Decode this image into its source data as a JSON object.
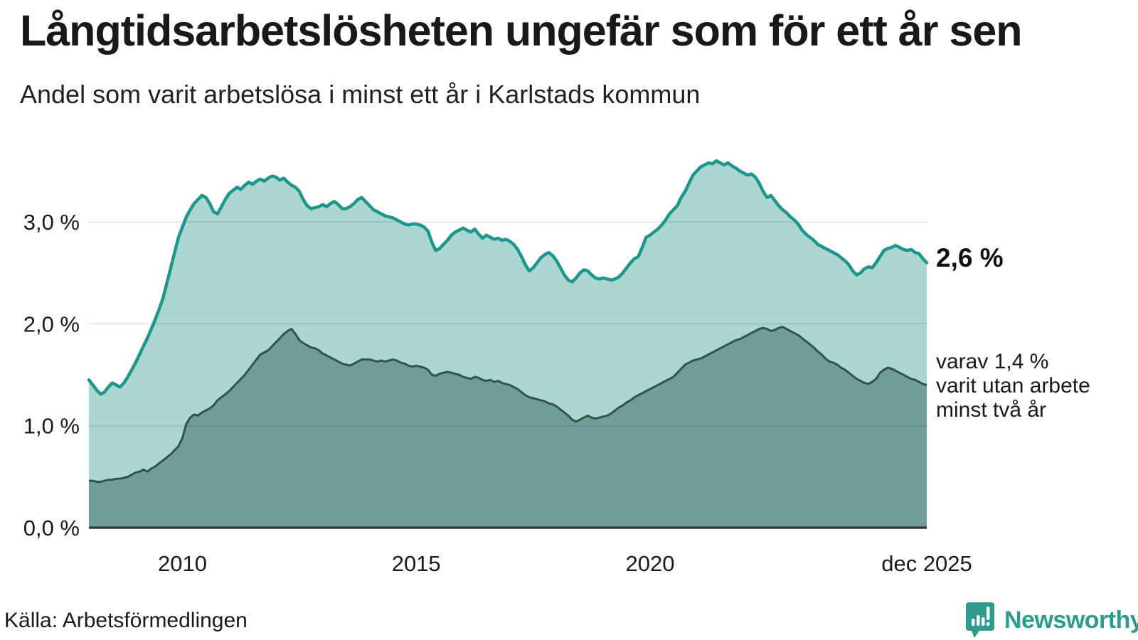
{
  "header": {
    "title": "Långtidsarbetslösheten ungefär som för ett år sen",
    "subtitle": "Andel som varit arbetslösa i minst ett år i Karlstads kommun"
  },
  "annotations": {
    "total_end_label": "2,6 %",
    "dark_end_line1": "varav 1,4 %",
    "dark_end_line2": "varit utan arbete",
    "dark_end_line3": "minst två år"
  },
  "footer": {
    "source": "Källa: Arbetsförmedlingen",
    "brand": "Newsworthy",
    "brand_color": "#2b9b8e",
    "logo_icon": "speech-bubble-bar-chart-icon"
  },
  "chart_data": {
    "type": "area",
    "title": "Långtidsarbetslösheten ungefär som för ett år sen",
    "subtitle": "Andel som varit arbetslösa i minst ett år i Karlstads kommun",
    "x_start": "2008-01",
    "x_end": "2025-12",
    "x_ticks": [
      {
        "index": 24,
        "label": "2010"
      },
      {
        "index": 84,
        "label": "2015"
      },
      {
        "index": 144,
        "label": "2020"
      },
      {
        "index": 215,
        "label": "dec 2025"
      }
    ],
    "y_ticks": [
      {
        "value": 0,
        "label": "0,0 %"
      },
      {
        "value": 1,
        "label": "1,0 %"
      },
      {
        "value": 2,
        "label": "2,0 %"
      },
      {
        "value": 3,
        "label": "3,0 %"
      }
    ],
    "ylim": [
      0,
      3.75
    ],
    "grid": true,
    "legend_position": "right-annotations",
    "colors": {
      "total_line": "#1d968b",
      "total_fill": "#abd7d0",
      "dark_line": "#35514c",
      "dark_fill": "#709d96",
      "gridline": "rgba(0,0,0,0.09)",
      "baseline": "#3a3a3a",
      "text": "#1a1a1a"
    },
    "series": [
      {
        "name": "arbetslösa minst ett år",
        "end_value": 2.6,
        "values": [
          1.45,
          1.4,
          1.35,
          1.31,
          1.33,
          1.38,
          1.42,
          1.4,
          1.38,
          1.42,
          1.48,
          1.55,
          1.62,
          1.7,
          1.78,
          1.86,
          1.95,
          2.04,
          2.14,
          2.25,
          2.4,
          2.55,
          2.7,
          2.85,
          2.95,
          3.05,
          3.12,
          3.18,
          3.22,
          3.26,
          3.24,
          3.18,
          3.1,
          3.08,
          3.15,
          3.22,
          3.28,
          3.31,
          3.34,
          3.32,
          3.36,
          3.39,
          3.37,
          3.4,
          3.42,
          3.4,
          3.43,
          3.45,
          3.44,
          3.41,
          3.43,
          3.39,
          3.36,
          3.34,
          3.3,
          3.22,
          3.16,
          3.13,
          3.14,
          3.15,
          3.17,
          3.15,
          3.18,
          3.2,
          3.17,
          3.13,
          3.13,
          3.15,
          3.18,
          3.22,
          3.24,
          3.2,
          3.16,
          3.12,
          3.1,
          3.08,
          3.06,
          3.05,
          3.04,
          3.02,
          3.0,
          2.98,
          2.97,
          2.98,
          2.98,
          2.97,
          2.95,
          2.91,
          2.8,
          2.72,
          2.74,
          2.78,
          2.82,
          2.87,
          2.9,
          2.92,
          2.94,
          2.92,
          2.9,
          2.93,
          2.88,
          2.84,
          2.87,
          2.85,
          2.83,
          2.84,
          2.82,
          2.83,
          2.81,
          2.78,
          2.73,
          2.66,
          2.58,
          2.52,
          2.55,
          2.6,
          2.65,
          2.68,
          2.7,
          2.67,
          2.62,
          2.55,
          2.48,
          2.43,
          2.41,
          2.45,
          2.5,
          2.53,
          2.52,
          2.48,
          2.45,
          2.44,
          2.45,
          2.44,
          2.43,
          2.44,
          2.46,
          2.5,
          2.55,
          2.6,
          2.64,
          2.66,
          2.75,
          2.85,
          2.87,
          2.9,
          2.93,
          2.97,
          3.02,
          3.08,
          3.12,
          3.16,
          3.24,
          3.3,
          3.38,
          3.46,
          3.5,
          3.54,
          3.56,
          3.58,
          3.57,
          3.6,
          3.58,
          3.56,
          3.58,
          3.55,
          3.53,
          3.5,
          3.48,
          3.46,
          3.47,
          3.44,
          3.38,
          3.3,
          3.24,
          3.26,
          3.21,
          3.16,
          3.12,
          3.09,
          3.05,
          3.02,
          2.98,
          2.92,
          2.88,
          2.85,
          2.82,
          2.78,
          2.76,
          2.74,
          2.72,
          2.7,
          2.68,
          2.65,
          2.62,
          2.58,
          2.52,
          2.48,
          2.5,
          2.54,
          2.56,
          2.55,
          2.6,
          2.66,
          2.72,
          2.74,
          2.75,
          2.77,
          2.75,
          2.73,
          2.72,
          2.73,
          2.7,
          2.69,
          2.64,
          2.6
        ]
      },
      {
        "name": "varav varit utan arbete minst två år",
        "end_value": 1.4,
        "values": [
          0.46,
          0.46,
          0.45,
          0.45,
          0.46,
          0.47,
          0.47,
          0.48,
          0.48,
          0.49,
          0.5,
          0.52,
          0.54,
          0.55,
          0.57,
          0.55,
          0.58,
          0.6,
          0.63,
          0.66,
          0.69,
          0.72,
          0.76,
          0.8,
          0.88,
          1.02,
          1.08,
          1.11,
          1.1,
          1.13,
          1.15,
          1.17,
          1.2,
          1.25,
          1.28,
          1.31,
          1.34,
          1.38,
          1.42,
          1.46,
          1.5,
          1.55,
          1.6,
          1.65,
          1.7,
          1.72,
          1.74,
          1.78,
          1.82,
          1.86,
          1.9,
          1.93,
          1.95,
          1.9,
          1.84,
          1.81,
          1.79,
          1.77,
          1.76,
          1.74,
          1.71,
          1.69,
          1.67,
          1.65,
          1.63,
          1.61,
          1.6,
          1.59,
          1.61,
          1.63,
          1.65,
          1.65,
          1.65,
          1.64,
          1.63,
          1.64,
          1.63,
          1.64,
          1.65,
          1.64,
          1.62,
          1.61,
          1.59,
          1.58,
          1.59,
          1.58,
          1.57,
          1.55,
          1.5,
          1.49,
          1.51,
          1.52,
          1.53,
          1.52,
          1.51,
          1.5,
          1.48,
          1.47,
          1.46,
          1.48,
          1.47,
          1.45,
          1.44,
          1.45,
          1.43,
          1.44,
          1.42,
          1.41,
          1.4,
          1.38,
          1.36,
          1.33,
          1.3,
          1.28,
          1.27,
          1.26,
          1.25,
          1.24,
          1.22,
          1.21,
          1.19,
          1.16,
          1.13,
          1.1,
          1.06,
          1.04,
          1.06,
          1.08,
          1.1,
          1.08,
          1.07,
          1.08,
          1.09,
          1.1,
          1.12,
          1.15,
          1.18,
          1.2,
          1.23,
          1.25,
          1.28,
          1.3,
          1.32,
          1.34,
          1.36,
          1.38,
          1.4,
          1.42,
          1.44,
          1.46,
          1.48,
          1.52,
          1.56,
          1.6,
          1.62,
          1.64,
          1.65,
          1.66,
          1.68,
          1.7,
          1.72,
          1.74,
          1.76,
          1.78,
          1.8,
          1.82,
          1.84,
          1.85,
          1.87,
          1.89,
          1.91,
          1.93,
          1.95,
          1.96,
          1.95,
          1.93,
          1.94,
          1.96,
          1.97,
          1.95,
          1.93,
          1.91,
          1.89,
          1.86,
          1.83,
          1.8,
          1.77,
          1.73,
          1.7,
          1.66,
          1.63,
          1.62,
          1.6,
          1.57,
          1.55,
          1.52,
          1.49,
          1.46,
          1.44,
          1.42,
          1.41,
          1.43,
          1.46,
          1.52,
          1.55,
          1.57,
          1.56,
          1.54,
          1.52,
          1.5,
          1.48,
          1.46,
          1.45,
          1.43,
          1.41,
          1.4
        ]
      }
    ]
  }
}
